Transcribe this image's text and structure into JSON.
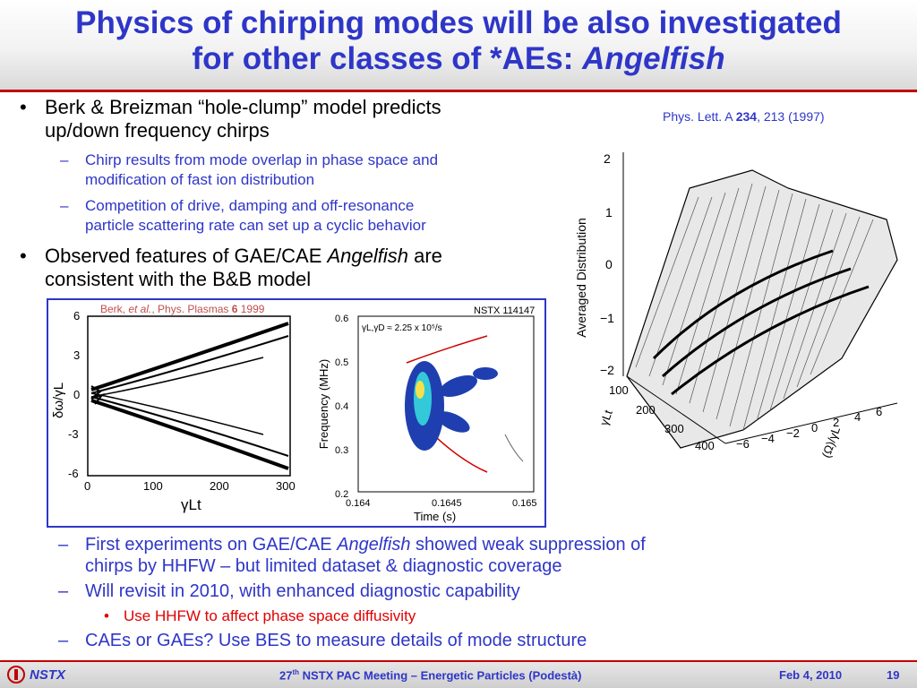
{
  "title": {
    "line1": "Physics of chirping modes will be also investigated",
    "line2_prefix": "for other classes of *AEs: ",
    "line2_italic": "Angelfish"
  },
  "bullets": {
    "b1": "Berk & Breizman “hole-clump” model predicts",
    "b1_cont": "up/down frequency chirps",
    "b1_sub1": "Chirp results from mode overlap in phase space and",
    "b1_sub1_cont": "modification of fast ion distribution",
    "b1_sub2": "Competition of drive, damping and off-resonance",
    "b1_sub2_cont": "particle scattering rate can set up a cyclic behavior",
    "b2_prefix": "Observed features of GAE/CAE ",
    "b2_italic": "Angelfish",
    "b2_suffix": " are",
    "b2_cont": "consistent with the B&B model"
  },
  "lower_bullets": {
    "l1_prefix": "First experiments on GAE/CAE ",
    "l1_italic": "Angelfish",
    "l1_suffix": " showed weak suppression of",
    "l1_cont": "chirps by HHFW – but limited dataset & diagnostic coverage",
    "l2": "Will revisit in 2010, with enhanced diagnostic capability",
    "l2_sub": "Use HHFW to affect phase space diffusivity",
    "l3": "CAEs or GAEs? Use BES to measure details of mode structure"
  },
  "citation": {
    "journal": "Phys. Lett. A ",
    "volume": "234",
    "rest": ", 213 (1997)"
  },
  "left_plot": {
    "ref_prefix": "Berk, ",
    "ref_italic": "et al.",
    "ref_mid": ", Phys. Plasmas ",
    "ref_vol": "6",
    "ref_year": " 1999",
    "ylabel": "δω/γL",
    "xlabel": "γLt",
    "yticks": [
      "6",
      "3",
      "0",
      "-3",
      "-6"
    ],
    "xticks": [
      "0",
      "100",
      "200",
      "300"
    ]
  },
  "right_plot": {
    "shot": "NSTX 114147",
    "annotation": "γL,γD ≈ 2.25 x 10⁵/s",
    "ylabel": "Frequency (MHz)",
    "xlabel": "Time (s)",
    "yticks": [
      "0.6",
      "0.5",
      "0.4",
      "0.3",
      "0.2"
    ],
    "xticks": [
      "0.164",
      "0.1645",
      "0.165"
    ]
  },
  "surface_plot": {
    "zlabel": "Averaged Distribution",
    "zticks": [
      "2",
      "1",
      "0",
      "−1",
      "−2"
    ],
    "tticks": [
      "100",
      "200",
      "300",
      "400"
    ],
    "t_label": "γLt",
    "uticks": [
      "−6",
      "−4",
      "−2",
      "0",
      "2",
      "4",
      "6"
    ],
    "u_label": "(Ω)/γL"
  },
  "footer": {
    "org": "NSTX",
    "meeting_num": "27",
    "meeting_sup": "th",
    "meeting_rest": " NSTX PAC Meeting – Energetic Particles (Podestà)",
    "date": "Feb 4, 2010",
    "page": "19"
  },
  "colors": {
    "title_blue": "#2e36c8",
    "accent_red": "#c00000",
    "highlight_red": "#e00000"
  }
}
